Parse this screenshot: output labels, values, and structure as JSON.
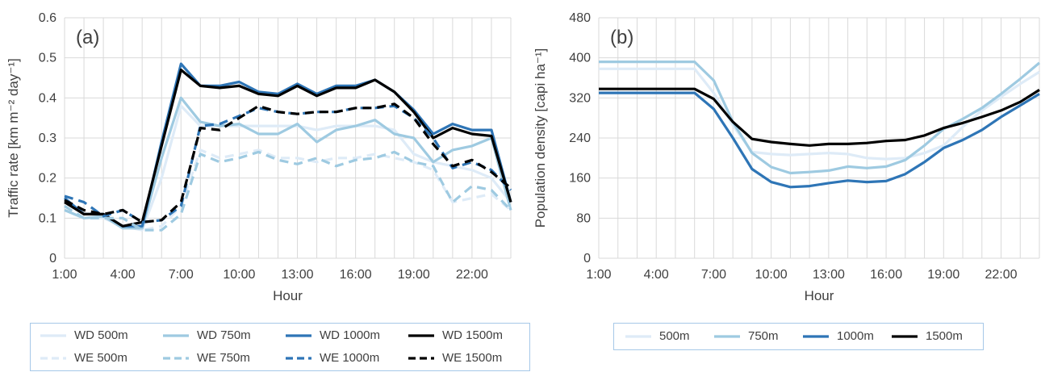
{
  "chart_data": [
    {
      "type": "line",
      "panel_label": "(a)",
      "xlabel": "Hour",
      "ylabel": "Traffic rate [km m⁻² day⁻¹]",
      "ylim": [
        0,
        0.6
      ],
      "yticks": [
        "0",
        "0.1",
        "0.2",
        "0.3",
        "0.4",
        "0.5",
        "0.6"
      ],
      "xticks": [
        "1:00",
        "4:00",
        "7:00",
        "10:00",
        "13:00",
        "16:00",
        "19:00",
        "22:00"
      ],
      "x": [
        1,
        2,
        3,
        4,
        5,
        6,
        7,
        8,
        9,
        10,
        11,
        12,
        13,
        14,
        15,
        16,
        17,
        18,
        19,
        20,
        21,
        22,
        23,
        24
      ],
      "grid": true,
      "legend_position": "bottom",
      "series": [
        {
          "name": "WD 500m",
          "color": "#deebf7",
          "dash": "solid",
          "values": [
            0.12,
            0.1,
            0.1,
            0.08,
            0.07,
            0.2,
            0.38,
            0.33,
            0.33,
            0.33,
            0.33,
            0.33,
            0.33,
            0.32,
            0.33,
            0.33,
            0.33,
            0.32,
            0.26,
            0.24,
            0.23,
            0.22,
            0.2,
            0.14
          ]
        },
        {
          "name": "WD 750m",
          "color": "#9ecae1",
          "dash": "solid",
          "values": [
            0.12,
            0.1,
            0.105,
            0.075,
            0.075,
            0.25,
            0.4,
            0.34,
            0.33,
            0.335,
            0.31,
            0.31,
            0.335,
            0.29,
            0.32,
            0.33,
            0.345,
            0.31,
            0.3,
            0.24,
            0.27,
            0.28,
            0.3,
            0.12
          ]
        },
        {
          "name": "WD 1000m",
          "color": "#2e75b6",
          "dash": "solid",
          "values": [
            0.15,
            0.11,
            0.11,
            0.08,
            0.08,
            0.29,
            0.485,
            0.43,
            0.43,
            0.44,
            0.415,
            0.41,
            0.435,
            0.41,
            0.43,
            0.43,
            0.445,
            0.415,
            0.37,
            0.31,
            0.335,
            0.32,
            0.32,
            0.14
          ]
        },
        {
          "name": "WD 1500m",
          "color": "#000000",
          "dash": "solid",
          "values": [
            0.14,
            0.11,
            0.11,
            0.08,
            0.09,
            0.28,
            0.47,
            0.43,
            0.425,
            0.43,
            0.41,
            0.405,
            0.43,
            0.405,
            0.425,
            0.425,
            0.445,
            0.415,
            0.365,
            0.3,
            0.325,
            0.31,
            0.305,
            0.14
          ]
        },
        {
          "name": "WE 500m",
          "color": "#deebf7",
          "dash": "dash",
          "values": [
            0.13,
            0.1,
            0.1,
            0.1,
            0.07,
            0.08,
            0.13,
            0.27,
            0.25,
            0.26,
            0.27,
            0.25,
            0.25,
            0.24,
            0.25,
            0.25,
            0.26,
            0.25,
            0.24,
            0.22,
            0.14,
            0.15,
            0.16,
            0.12
          ]
        },
        {
          "name": "WE 750m",
          "color": "#9ecae1",
          "dash": "dash",
          "values": [
            0.13,
            0.1,
            0.1,
            0.1,
            0.07,
            0.07,
            0.11,
            0.26,
            0.24,
            0.25,
            0.265,
            0.245,
            0.235,
            0.25,
            0.23,
            0.245,
            0.25,
            0.265,
            0.24,
            0.23,
            0.14,
            0.18,
            0.17,
            0.12
          ]
        },
        {
          "name": "WE 1000m",
          "color": "#2e75b6",
          "dash": "dash",
          "values": [
            0.155,
            0.14,
            0.105,
            0.12,
            0.09,
            0.095,
            0.13,
            0.33,
            0.335,
            0.355,
            0.375,
            0.365,
            0.36,
            0.365,
            0.365,
            0.375,
            0.375,
            0.38,
            0.35,
            0.3,
            0.225,
            0.24,
            0.22,
            0.17
          ]
        },
        {
          "name": "WE 1500m",
          "color": "#000000",
          "dash": "dash",
          "values": [
            0.145,
            0.12,
            0.11,
            0.12,
            0.09,
            0.095,
            0.14,
            0.325,
            0.32,
            0.35,
            0.38,
            0.365,
            0.36,
            0.365,
            0.365,
            0.375,
            0.375,
            0.385,
            0.35,
            0.285,
            0.23,
            0.245,
            0.215,
            0.175
          ]
        }
      ]
    },
    {
      "type": "line",
      "panel_label": "(b)",
      "xlabel": "Hour",
      "ylabel": "Population density [capi ha⁻¹]",
      "ylim": [
        0,
        480
      ],
      "yticks": [
        "0",
        "80",
        "160",
        "240",
        "320",
        "400",
        "480"
      ],
      "xticks": [
        "1:00",
        "4:00",
        "7:00",
        "10:00",
        "13:00",
        "16:00",
        "19:00",
        "22:00"
      ],
      "x": [
        1,
        2,
        3,
        4,
        5,
        6,
        7,
        8,
        9,
        10,
        11,
        12,
        13,
        14,
        15,
        16,
        17,
        18,
        19,
        20,
        21,
        22,
        23,
        24
      ],
      "grid": true,
      "legend_position": "bottom",
      "series": [
        {
          "name": "500m",
          "color": "#deebf7",
          "dash": "solid",
          "values": [
            378,
            378,
            378,
            378,
            378,
            378,
            330,
            265,
            212,
            208,
            206,
            208,
            210,
            208,
            200,
            198,
            200,
            210,
            225,
            262,
            295,
            322,
            348,
            372
          ]
        },
        {
          "name": "750m",
          "color": "#9ecae1",
          "dash": "solid",
          "values": [
            392,
            392,
            392,
            392,
            392,
            392,
            355,
            272,
            210,
            182,
            170,
            172,
            175,
            183,
            180,
            183,
            196,
            225,
            258,
            278,
            300,
            328,
            358,
            390
          ]
        },
        {
          "name": "1000m",
          "color": "#2e75b6",
          "dash": "solid",
          "values": [
            330,
            330,
            330,
            330,
            330,
            330,
            298,
            240,
            178,
            152,
            142,
            144,
            150,
            155,
            152,
            154,
            168,
            192,
            220,
            236,
            256,
            282,
            305,
            328
          ]
        },
        {
          "name": "1500m",
          "color": "#000000",
          "dash": "solid",
          "values": [
            338,
            338,
            338,
            338,
            338,
            338,
            318,
            272,
            238,
            232,
            228,
            225,
            228,
            228,
            230,
            234,
            236,
            245,
            260,
            270,
            282,
            295,
            312,
            336
          ]
        }
      ]
    }
  ]
}
